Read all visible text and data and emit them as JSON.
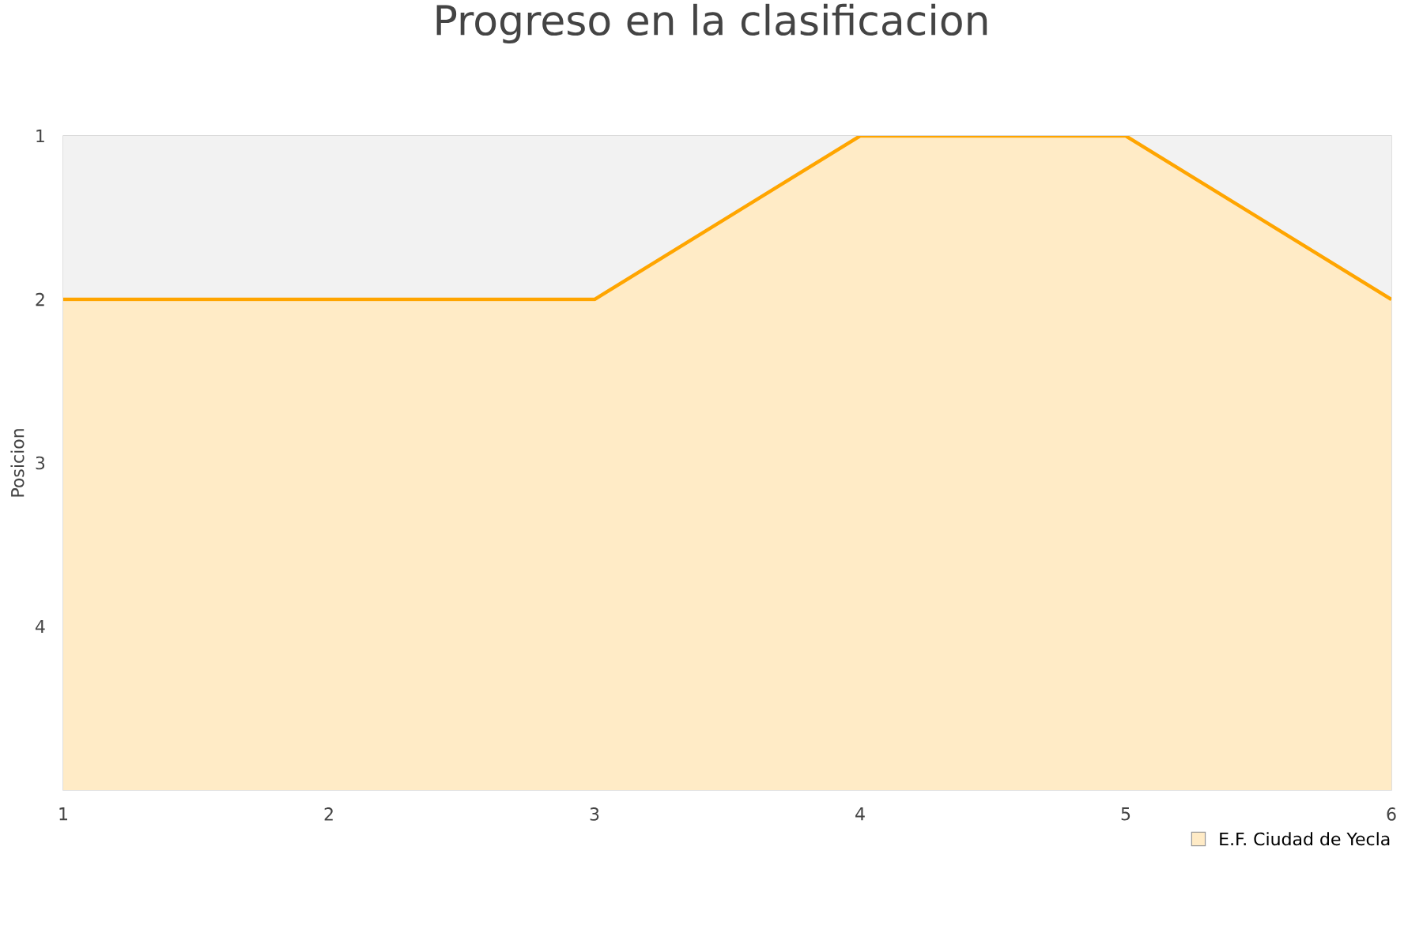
{
  "chart_data": {
    "type": "area",
    "title": "Progreso en la clasificacion",
    "ylabel": "Posicion",
    "x": [
      1,
      2,
      3,
      4,
      5,
      6
    ],
    "series": [
      {
        "name": "E.F. Ciudad de Yecla",
        "color": "#ffa500",
        "values": [
          2,
          2,
          2,
          1,
          1,
          2
        ]
      }
    ],
    "xlim": [
      1,
      6
    ],
    "xticks": [
      1,
      2,
      3,
      4,
      5,
      6
    ],
    "ylim": [
      5,
      1
    ],
    "yticks": [
      1,
      2,
      3,
      4
    ],
    "grid": "y",
    "legend": "bottom right"
  }
}
